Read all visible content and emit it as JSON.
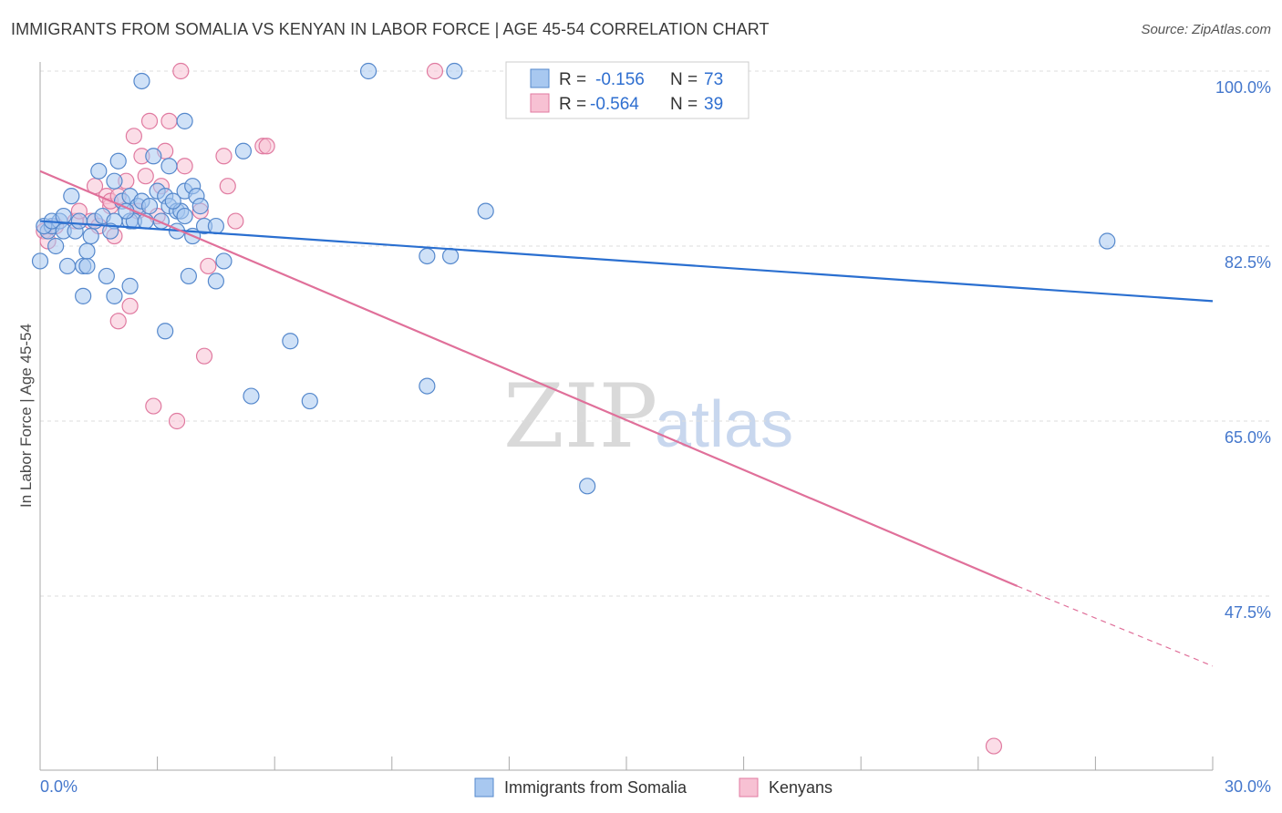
{
  "title": "IMMIGRANTS FROM SOMALIA VS KENYAN IN LABOR FORCE | AGE 45-54 CORRELATION CHART",
  "source": "Source: ZipAtlas.com",
  "watermark": {
    "zip": "ZIP",
    "atlas": "atlas"
  },
  "colors": {
    "blue_fill": "#a8c8f0",
    "blue_stroke": "#5588cc",
    "blue_line": "#2a6fd0",
    "pink_fill": "#f7c1d3",
    "pink_stroke": "#e07aa0",
    "pink_line": "#e0709a",
    "grid": "#dddddd",
    "tick_text": "#4477cc"
  },
  "legend": {
    "rows": [
      {
        "r_label": "R =",
        "r_value": "-0.156",
        "n_label": "N =",
        "n_value": "73",
        "series": "blue"
      },
      {
        "r_label": "R =",
        "r_value": "-0.564",
        "n_label": "N =",
        "n_value": "39",
        "series": "pink"
      }
    ]
  },
  "chart_data": {
    "type": "scatter",
    "xlabel": "",
    "ylabel": "In Labor Force | Age 45-54",
    "xlim": [
      0,
      30
    ],
    "ylim": [
      32,
      102
    ],
    "x_tick_labels": [
      "0.0%",
      "30.0%"
    ],
    "y_ticks": [
      100.0,
      82.5,
      65.0,
      47.5
    ],
    "y_tick_labels": [
      "100.0%",
      "82.5%",
      "65.0%",
      "47.5%"
    ],
    "series": [
      {
        "name": "Immigrants from Somalia",
        "color": "blue",
        "trend": {
          "x0": 0,
          "y0": 85.0,
          "x1": 30,
          "y1": 77.0
        },
        "points": [
          [
            0.0,
            81.0
          ],
          [
            0.2,
            84.0
          ],
          [
            0.3,
            84.5
          ],
          [
            0.4,
            82.5
          ],
          [
            0.5,
            85.0
          ],
          [
            0.6,
            84.0
          ],
          [
            0.7,
            80.5
          ],
          [
            0.8,
            87.5
          ],
          [
            0.9,
            84.0
          ],
          [
            1.0,
            85.0
          ],
          [
            1.1,
            80.5
          ],
          [
            1.1,
            77.5
          ],
          [
            1.2,
            80.5
          ],
          [
            1.2,
            82.0
          ],
          [
            1.3,
            83.5
          ],
          [
            1.4,
            85.0
          ],
          [
            1.5,
            90.0
          ],
          [
            1.6,
            85.5
          ],
          [
            1.7,
            79.5
          ],
          [
            1.9,
            89.0
          ],
          [
            1.9,
            85.0
          ],
          [
            1.9,
            77.5
          ],
          [
            2.0,
            91.0
          ],
          [
            2.1,
            87.0
          ],
          [
            2.3,
            85.0
          ],
          [
            2.3,
            87.5
          ],
          [
            2.3,
            78.5
          ],
          [
            2.4,
            85.0
          ],
          [
            2.5,
            86.5
          ],
          [
            2.6,
            87.0
          ],
          [
            2.6,
            99.0
          ],
          [
            2.7,
            85.0
          ],
          [
            2.8,
            86.5
          ],
          [
            2.9,
            91.5
          ],
          [
            3.0,
            88.0
          ],
          [
            3.1,
            85.0
          ],
          [
            3.2,
            87.5
          ],
          [
            3.2,
            74.0
          ],
          [
            3.3,
            86.5
          ],
          [
            3.3,
            90.5
          ],
          [
            3.5,
            84.0
          ],
          [
            3.5,
            86.0
          ],
          [
            3.6,
            86.0
          ],
          [
            3.7,
            88.0
          ],
          [
            3.7,
            85.5
          ],
          [
            3.7,
            95.0
          ],
          [
            3.8,
            79.5
          ],
          [
            3.9,
            88.5
          ],
          [
            3.9,
            83.5
          ],
          [
            4.0,
            87.5
          ],
          [
            4.1,
            86.5
          ],
          [
            4.2,
            84.5
          ],
          [
            4.5,
            84.5
          ],
          [
            4.5,
            79.0
          ],
          [
            4.7,
            81.0
          ],
          [
            5.2,
            92.0
          ],
          [
            5.4,
            67.5
          ],
          [
            6.4,
            73.0
          ],
          [
            6.9,
            67.0
          ],
          [
            8.4,
            100.0
          ],
          [
            9.9,
            68.5
          ],
          [
            9.9,
            81.5
          ],
          [
            10.5,
            81.5
          ],
          [
            10.6,
            100.0
          ],
          [
            11.4,
            86.0
          ],
          [
            14.0,
            58.5
          ],
          [
            27.3,
            83.0
          ],
          [
            0.1,
            84.5
          ],
          [
            0.3,
            85.0
          ],
          [
            0.6,
            85.5
          ],
          [
            1.8,
            84.0
          ],
          [
            2.2,
            86.0
          ],
          [
            3.4,
            87.0
          ]
        ]
      },
      {
        "name": "Kenyans",
        "color": "pink",
        "trend": {
          "x0": 0,
          "y0": 90.0,
          "x1": 25.0,
          "y1": 48.5,
          "dash_x1": 30,
          "dash_y1": 40.5
        },
        "points": [
          [
            0.1,
            84.0
          ],
          [
            0.2,
            83.0
          ],
          [
            0.4,
            84.5
          ],
          [
            0.9,
            85.0
          ],
          [
            1.0,
            86.0
          ],
          [
            1.3,
            85.0
          ],
          [
            1.4,
            88.5
          ],
          [
            1.5,
            84.5
          ],
          [
            1.7,
            87.5
          ],
          [
            1.8,
            86.5
          ],
          [
            1.8,
            87.0
          ],
          [
            1.9,
            83.5
          ],
          [
            2.0,
            87.5
          ],
          [
            2.0,
            75.0
          ],
          [
            2.2,
            89.0
          ],
          [
            2.3,
            76.5
          ],
          [
            2.4,
            93.5
          ],
          [
            2.5,
            86.0
          ],
          [
            2.6,
            91.5
          ],
          [
            2.7,
            89.5
          ],
          [
            2.8,
            95.0
          ],
          [
            2.9,
            66.5
          ],
          [
            3.0,
            85.5
          ],
          [
            3.1,
            88.5
          ],
          [
            3.2,
            92.0
          ],
          [
            3.3,
            95.0
          ],
          [
            3.5,
            65.0
          ],
          [
            3.6,
            100.0
          ],
          [
            3.7,
            90.5
          ],
          [
            4.1,
            86.0
          ],
          [
            4.2,
            71.5
          ],
          [
            4.3,
            80.5
          ],
          [
            4.7,
            91.5
          ],
          [
            4.8,
            88.5
          ],
          [
            5.0,
            85.0
          ],
          [
            5.7,
            92.5
          ],
          [
            5.8,
            92.5
          ],
          [
            10.1,
            100.0
          ],
          [
            24.4,
            32.5
          ]
        ]
      }
    ]
  }
}
